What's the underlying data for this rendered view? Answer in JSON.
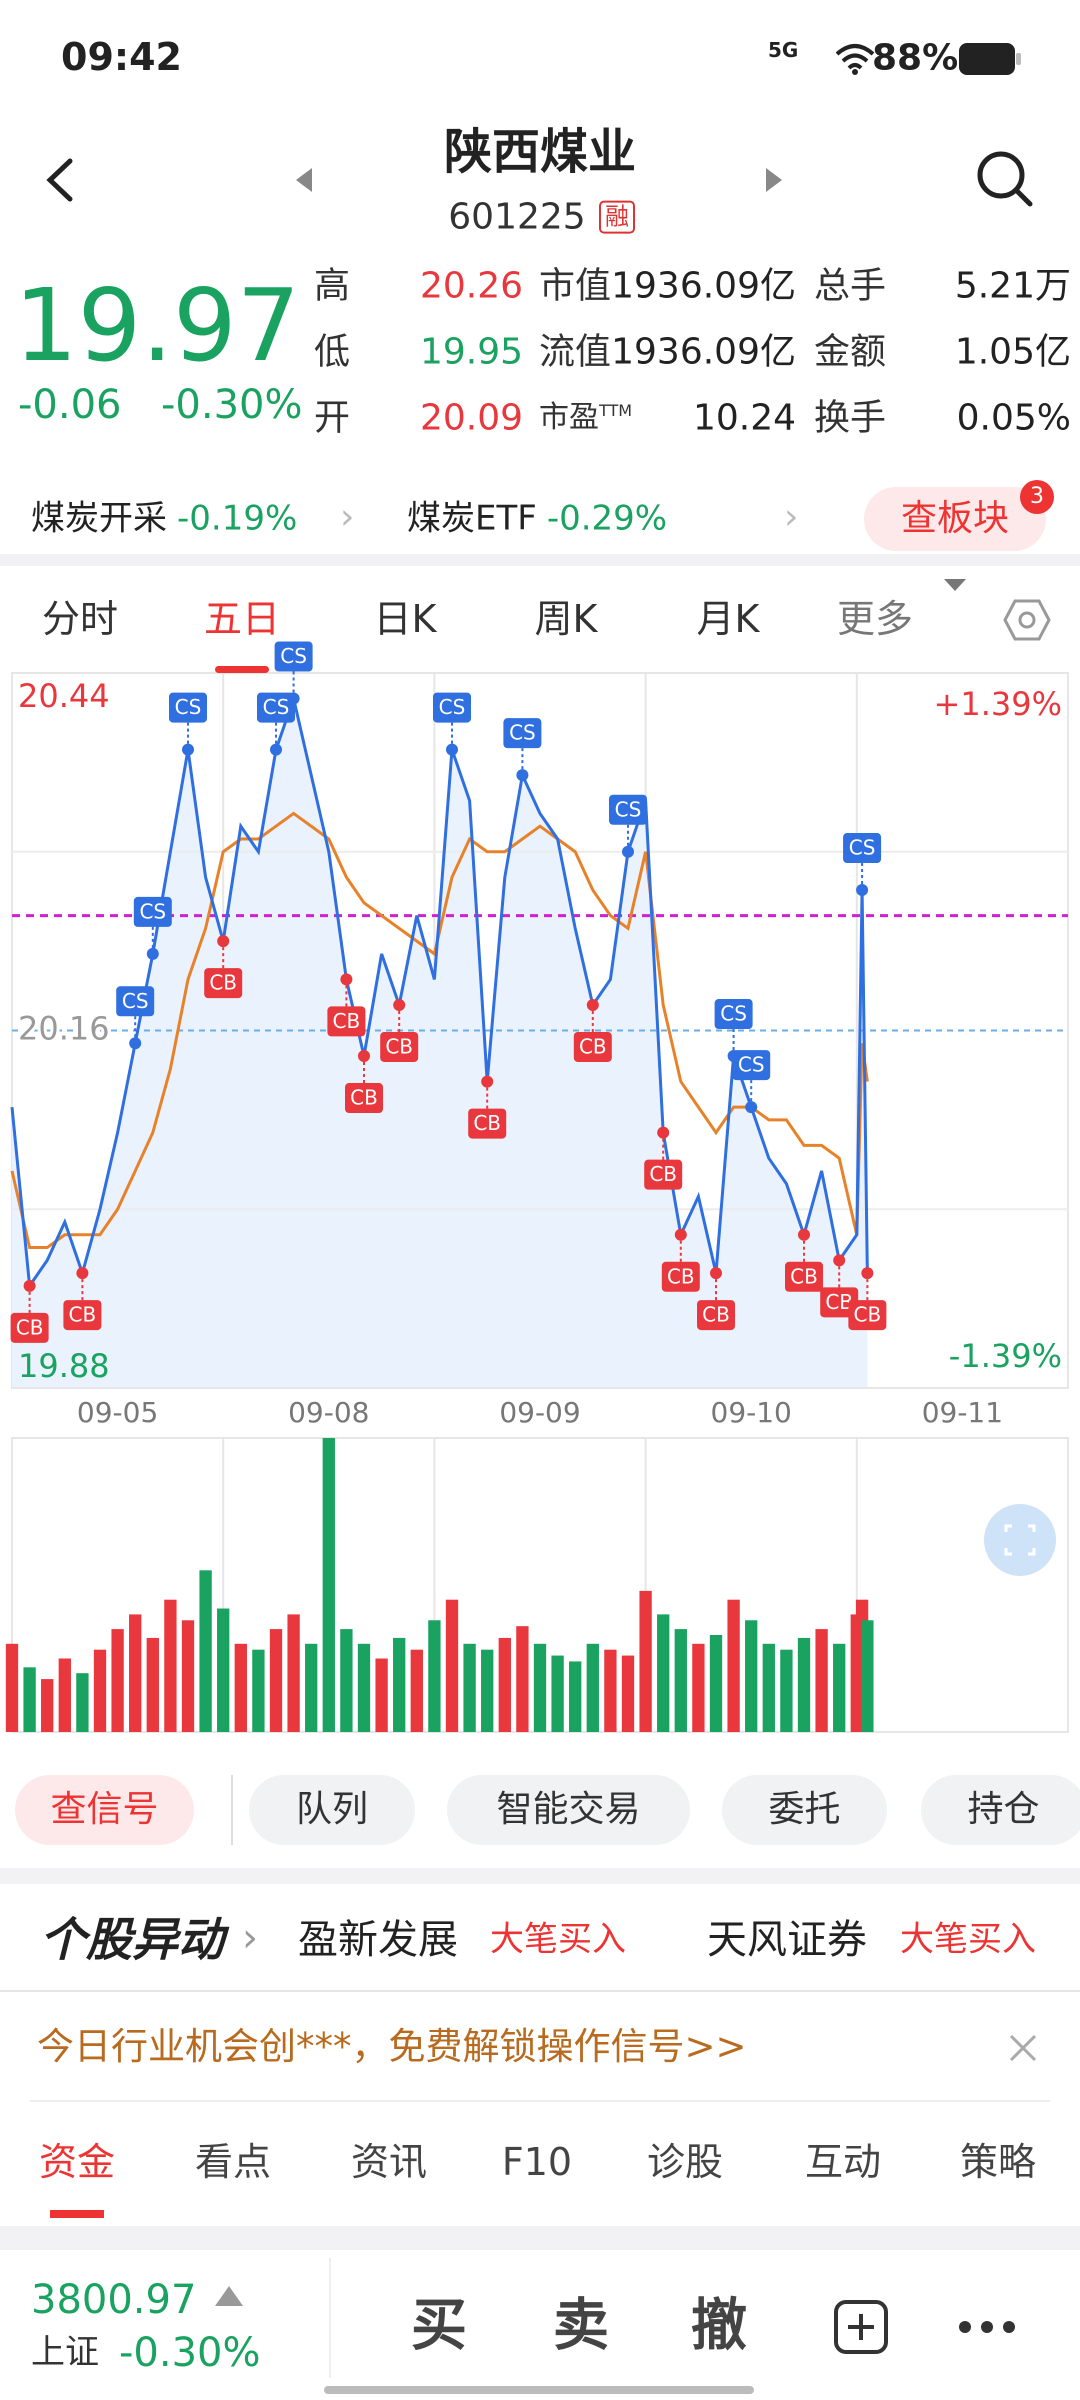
{
  "status_bar": {
    "time": "09:42",
    "network": "5G",
    "battery": "88%"
  },
  "header": {
    "title": "陕西煤业",
    "code": "601225",
    "badge": "融"
  },
  "quote": {
    "price": "19.97",
    "change": "-0.06",
    "change_pct": "-0.30%",
    "stats": [
      [
        {
          "label": "高",
          "value": "20.26"
        },
        {
          "label": "市值",
          "value": "1936.09亿"
        },
        {
          "label": "总手",
          "value": "5.21万"
        }
      ],
      [
        {
          "label": "低",
          "value": "19.95"
        },
        {
          "label": "流值",
          "value": "1936.09亿"
        },
        {
          "label": "金额",
          "value": "1.05亿"
        }
      ],
      [
        {
          "label": "开",
          "value": "20.09"
        },
        {
          "label": "市盈",
          "sup": "TTM",
          "value": "10.24"
        },
        {
          "label": "换手",
          "value": "0.05%"
        }
      ]
    ]
  },
  "sectors": {
    "items": [
      {
        "name": "煤炭开采",
        "change": "-0.19%"
      },
      {
        "name": "煤炭ETF",
        "change": "-0.29%"
      }
    ],
    "button": "查板块",
    "badge": "3"
  },
  "tabs": {
    "items": [
      "分时",
      "五日",
      "日K",
      "周K",
      "月K",
      "更多"
    ],
    "active": 1
  },
  "chart_data": {
    "type": "line",
    "x": [
      0,
      20,
      40,
      60,
      80,
      100,
      120,
      140,
      160,
      180,
      200,
      220,
      240,
      260,
      280,
      300,
      320,
      340,
      360,
      380,
      400,
      420,
      440,
      460,
      480,
      500,
      520,
      540,
      560,
      580,
      600,
      620,
      640,
      660,
      680,
      700,
      720,
      740,
      760,
      780,
      800,
      820,
      840,
      860,
      880,
      900,
      920,
      940,
      960,
      966,
      972
    ],
    "values": [
      20.1,
      19.96,
      19.98,
      20.01,
      19.97,
      20.02,
      20.08,
      20.15,
      20.22,
      20.3,
      20.38,
      20.28,
      20.23,
      20.32,
      20.3,
      20.38,
      20.42,
      20.36,
      20.3,
      20.2,
      20.14,
      20.22,
      20.18,
      20.25,
      20.2,
      20.38,
      20.34,
      20.12,
      20.28,
      20.36,
      20.33,
      20.31,
      20.24,
      20.18,
      20.2,
      20.3,
      20.34,
      20.08,
      20.0,
      20.03,
      19.97,
      20.14,
      20.1,
      20.06,
      20.04,
      20.0,
      20.05,
      19.98,
      20.0,
      20.27,
      19.97
    ],
    "average": [
      20.05,
      19.99,
      19.99,
      20.0,
      20.0,
      20.0,
      20.02,
      20.05,
      20.08,
      20.13,
      20.2,
      20.24,
      20.3,
      20.31,
      20.31,
      20.32,
      20.33,
      20.32,
      20.31,
      20.28,
      20.26,
      20.25,
      20.24,
      20.23,
      20.22,
      20.28,
      20.31,
      20.3,
      20.3,
      20.31,
      20.32,
      20.31,
      20.3,
      20.27,
      20.25,
      20.24,
      20.3,
      20.18,
      20.12,
      20.1,
      20.08,
      20.1,
      20.1,
      20.09,
      20.09,
      20.07,
      20.07,
      20.06,
      20.0,
      20.15,
      20.12
    ],
    "signals": [
      null,
      "CB",
      null,
      null,
      "CB",
      null,
      null,
      "CS",
      "CS",
      null,
      "CS",
      null,
      "CB",
      null,
      null,
      "CS",
      "CS",
      null,
      null,
      "CB",
      "CB",
      null,
      "CB",
      null,
      null,
      "CS",
      null,
      "CB",
      null,
      "CS",
      null,
      null,
      null,
      "CB",
      null,
      "CS",
      null,
      "CB",
      "CB",
      null,
      "CB",
      "CS",
      "CS",
      null,
      null,
      "CB",
      null,
      "CB",
      null,
      "CS",
      "CB"
    ],
    "volume": [
      30,
      22,
      18,
      25,
      20,
      28,
      35,
      40,
      32,
      45,
      38,
      55,
      42,
      30,
      28,
      35,
      40,
      30,
      100,
      35,
      30,
      25,
      32,
      28,
      38,
      45,
      30,
      28,
      32,
      36,
      30,
      26,
      24,
      30,
      28,
      26,
      48,
      40,
      35,
      30,
      33,
      45,
      38,
      30,
      28,
      32,
      35,
      30,
      40,
      45,
      38
    ],
    "vlim": [
      0,
      100
    ],
    "line_color": "#2f6fe0",
    "average_color": "#e8822a",
    "fill_color": "#e9f2fd",
    "up_color": "#e8383d",
    "down_color": "#1aa260",
    "reference_line": 20.25,
    "reference_color": "#d21fd2",
    "xlim": [
      0,
      1200
    ],
    "xticks": [
      {
        "value": 120,
        "label": "09-05"
      },
      {
        "value": 360,
        "label": "09-08"
      },
      {
        "value": 600,
        "label": "09-09"
      },
      {
        "value": 840,
        "label": "09-10"
      },
      {
        "value": 1080,
        "label": "09-11"
      }
    ],
    "ylim": [
      19.88,
      20.44
    ],
    "yticks": [
      19.88,
      20.16,
      20.44
    ],
    "y2lim": [
      -1.39,
      1.39
    ],
    "y2ticks": [
      {
        "value": -1.39,
        "label": "-1.39%"
      },
      {
        "value": 1.39,
        "label": "+1.39%"
      }
    ],
    "grid": true
  },
  "actions": {
    "buttons": [
      "查信号",
      "队列",
      "智能交易",
      "委托",
      "持仓"
    ]
  },
  "news": {
    "title": "个股异动",
    "items": [
      {
        "name": "盈新发展",
        "action": "大笔买入"
      },
      {
        "name": "天风证券",
        "action": "大笔买入"
      }
    ]
  },
  "promo": {
    "text": "今日行业机会创***，免费解锁操作信号>>"
  },
  "bottom_tabs": {
    "items": [
      "资金",
      "看点",
      "资讯",
      "F10",
      "诊股",
      "互动",
      "策略"
    ],
    "active": 0
  },
  "footer": {
    "index_value": "3800.97",
    "index_name": "上证",
    "index_change": "-0.30%",
    "trade": [
      "买",
      "卖",
      "撤"
    ]
  }
}
